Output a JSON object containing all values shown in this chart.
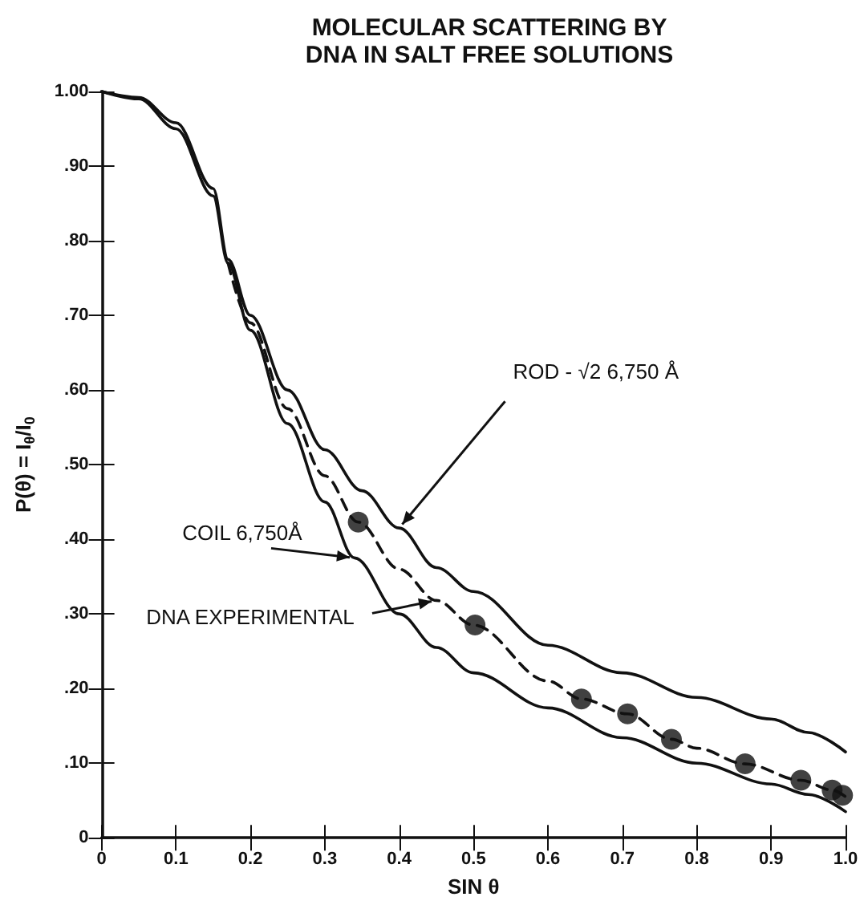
{
  "chart_data": {
    "type": "line",
    "title": "MOLECULAR SCATTERING BY\nDNA IN SALT FREE SOLUTIONS",
    "xlabel": "SIN θ",
    "ylabel": "P(θ) = I$_{θ}$/I$_{0}$",
    "xlim": [
      0,
      1
    ],
    "ylim": [
      0,
      1
    ],
    "xticks": [
      {
        "value": 0,
        "label": "0"
      },
      0.1,
      0.2,
      0.3,
      0.4,
      0.5,
      0.6,
      0.7,
      0.8,
      0.9,
      {
        "value": 1,
        "label": "1.0"
      }
    ],
    "yticks": [
      {
        "value": 0,
        "label": "0"
      },
      {
        "value": 0.1,
        "label": ".10"
      },
      {
        "value": 0.2,
        "label": ".20"
      },
      {
        "value": 0.3,
        "label": ".30"
      },
      {
        "value": 0.4,
        "label": ".40"
      },
      {
        "value": 0.5,
        "label": ".50"
      },
      {
        "value": 0.6,
        "label": ".60"
      },
      {
        "value": 0.7,
        "label": ".70"
      },
      {
        "value": 0.8,
        "label": ".80"
      },
      {
        "value": 0.9,
        "label": ".90"
      },
      {
        "value": 1,
        "label": "1.00"
      }
    ],
    "grid": false,
    "marker": "none",
    "annotations": [
      {
        "text": "ROD - √2 6,750 Å",
        "x": 0.4,
        "y": 0.415
      },
      {
        "text": "COIL 6,750Å",
        "x": 0.34,
        "y": 0.375
      },
      {
        "text": "DNA EXPERIMENTAL",
        "x": 0.45,
        "y": 0.318
      }
    ],
    "series": [
      {
        "color": "#111111",
        "line_style": "solid",
        "x": [
          0,
          0.05,
          0.1,
          0.15,
          0.17,
          0.2,
          0.25,
          0.3,
          0.35,
          0.4,
          0.45,
          0.5,
          0.6,
          0.7,
          0.8,
          0.9,
          0.95,
          1.0
        ],
        "values": [
          1.0,
          0.992,
          0.958,
          0.87,
          0.775,
          0.7,
          0.6,
          0.52,
          0.465,
          0.415,
          0.362,
          0.33,
          0.258,
          0.221,
          0.188,
          0.159,
          0.141,
          0.115
        ]
      },
      {
        "color": "#111111",
        "line_style": "solid",
        "x": [
          0,
          0.05,
          0.1,
          0.15,
          0.17,
          0.2,
          0.25,
          0.3,
          0.34,
          0.4,
          0.45,
          0.5,
          0.6,
          0.7,
          0.8,
          0.9,
          0.95,
          1.0
        ],
        "values": [
          1.0,
          0.99,
          0.95,
          0.86,
          0.77,
          0.68,
          0.555,
          0.45,
          0.375,
          0.3,
          0.255,
          0.221,
          0.174,
          0.134,
          0.1,
          0.072,
          0.058,
          0.035
        ]
      },
      {
        "color": "#111111",
        "line_style": "dashed",
        "x": [
          0.17,
          0.2,
          0.25,
          0.3,
          0.345,
          0.4,
          0.45,
          0.5,
          0.6,
          0.645,
          0.707,
          0.766,
          0.8,
          0.865,
          0.94,
          0.982,
          1.0
        ],
        "values": [
          0.77,
          0.69,
          0.575,
          0.485,
          0.423,
          0.36,
          0.318,
          0.285,
          0.21,
          0.186,
          0.166,
          0.132,
          0.12,
          0.099,
          0.077,
          0.064,
          0.055
        ]
      },
      {
        "type": "scatter",
        "marker": "circle",
        "color": "#111111",
        "x": [
          0.345,
          0.502,
          0.645,
          0.707,
          0.766,
          0.865,
          0.94,
          0.982,
          0.996
        ],
        "values": [
          0.423,
          0.285,
          0.186,
          0.166,
          0.132,
          0.099,
          0.077,
          0.064,
          0.057
        ]
      }
    ]
  }
}
